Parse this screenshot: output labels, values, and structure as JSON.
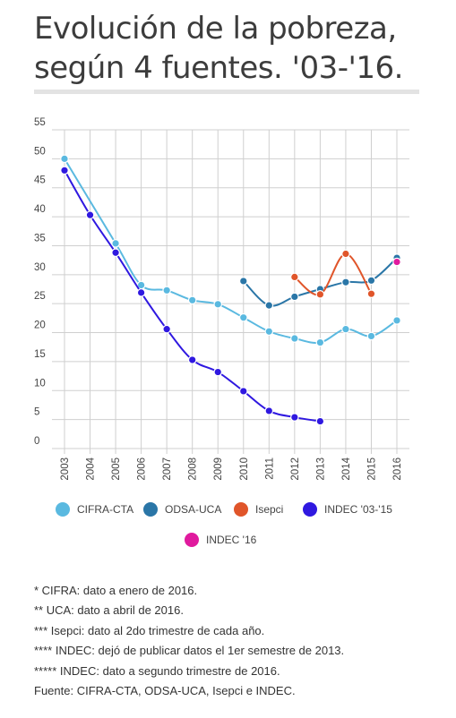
{
  "title_line1": "Evolución de la pobreza,",
  "title_line2": "según 4 fuentes. '03-'16.",
  "chart_data": {
    "type": "line",
    "x": [
      2003,
      2004,
      2005,
      2006,
      2007,
      2008,
      2009,
      2010,
      2011,
      2012,
      2013,
      2014,
      2015,
      2016
    ],
    "ylim": [
      0,
      55
    ],
    "yticks": [
      0,
      5,
      10,
      15,
      20,
      25,
      30,
      35,
      40,
      45,
      50,
      55
    ],
    "grid": true,
    "legend_position": "bottom",
    "series": [
      {
        "name": "CIFRA-CTA",
        "color": "#5ab9e0",
        "points": [
          [
            2003,
            50.0
          ],
          [
            2005,
            35.4
          ],
          [
            2006,
            28.2
          ],
          [
            2007,
            27.3
          ],
          [
            2008,
            25.6
          ],
          [
            2009,
            24.9
          ],
          [
            2010,
            22.6
          ],
          [
            2011,
            20.2
          ],
          [
            2012,
            19.0
          ],
          [
            2013,
            18.3
          ],
          [
            2014,
            20.6
          ],
          [
            2015,
            19.4
          ],
          [
            2016,
            22.1
          ]
        ]
      },
      {
        "name": "ODSA-UCA",
        "color": "#2a76a7",
        "points": [
          [
            2010,
            28.9
          ],
          [
            2011,
            24.7
          ],
          [
            2012,
            26.2
          ],
          [
            2013,
            27.5
          ],
          [
            2014,
            28.7
          ],
          [
            2015,
            29.0
          ],
          [
            2016,
            32.9
          ]
        ]
      },
      {
        "name": "Isepci",
        "color": "#e0552a",
        "points": [
          [
            2012,
            29.6
          ],
          [
            2013,
            26.6
          ],
          [
            2014,
            33.6
          ],
          [
            2015,
            26.7
          ]
        ]
      },
      {
        "name": "INDEC '03-'15",
        "color": "#2f18e0",
        "points": [
          [
            2003,
            48.0
          ],
          [
            2004,
            40.3
          ],
          [
            2005,
            33.8
          ],
          [
            2006,
            26.9
          ],
          [
            2007,
            20.6
          ],
          [
            2008,
            15.3
          ],
          [
            2009,
            13.2
          ],
          [
            2010,
            9.9
          ],
          [
            2011,
            6.5
          ],
          [
            2012,
            5.4
          ],
          [
            2013,
            4.7
          ]
        ]
      },
      {
        "name": "INDEC '16",
        "color": "#e01a9e",
        "points": [
          [
            2016,
            32.2
          ]
        ]
      }
    ]
  },
  "notes": [
    "* CIFRA: dato a enero de 2016.",
    "** UCA: dato a abril de 2016.",
    "*** Isepci: dato al 2do trimestre de cada año.",
    "**** INDEC: dejó de publicar datos el 1er semestre de 2013.",
    "***** INDEC: dato a segundo trimestre de 2016.",
    "Fuente: CIFRA-CTA, ODSA-UCA, Isepci e INDEC."
  ]
}
